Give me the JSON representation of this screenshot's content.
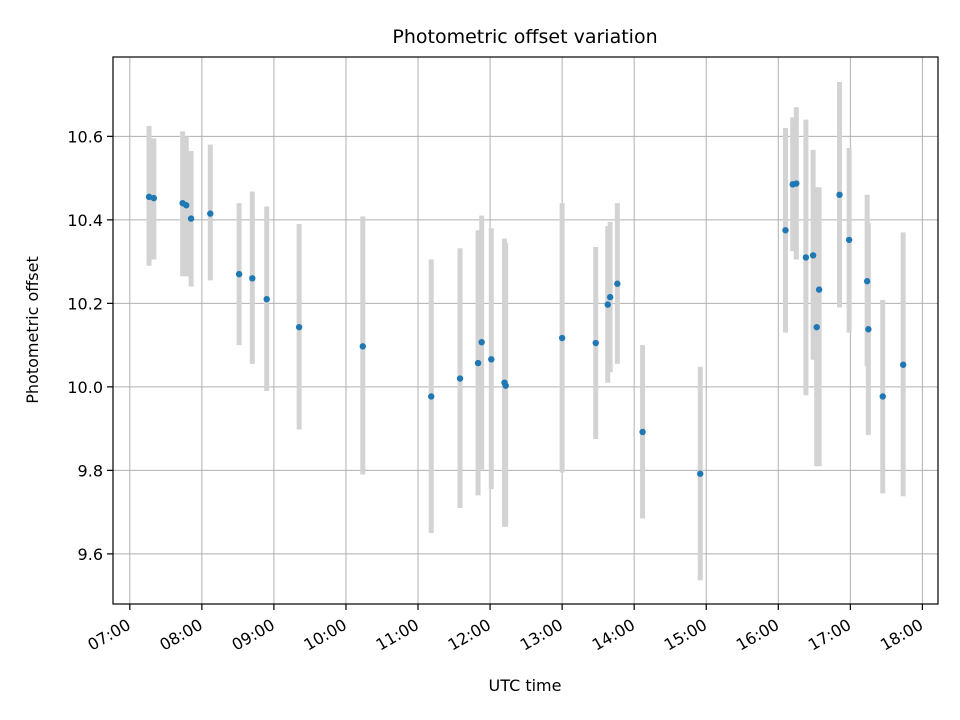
{
  "chart_data": {
    "type": "scatter",
    "title": "Photometric offset variation",
    "xlabel": "UTC time",
    "ylabel": "Photometric offset",
    "x_ticks": [
      "07:00",
      "08:00",
      "09:00",
      "10:00",
      "11:00",
      "12:00",
      "13:00",
      "14:00",
      "15:00",
      "16:00",
      "17:00",
      "18:00"
    ],
    "y_ticks": [
      "9.6",
      "9.8",
      "10.0",
      "10.2",
      "10.4",
      "10.6"
    ],
    "xlim": [
      "06:46",
      "18:13"
    ],
    "ylim": [
      9.48,
      10.79
    ],
    "grid": true,
    "series": [
      {
        "marker_color": "#1f77b4",
        "errorbar_color": "#d3d3d3",
        "points": [
          {
            "x": "07:16",
            "y": 10.455,
            "lo": 10.29,
            "hi": 10.625
          },
          {
            "x": "07:20",
            "y": 10.452,
            "lo": 10.305,
            "hi": 10.595
          },
          {
            "x": "07:44",
            "y": 10.44,
            "lo": 10.265,
            "hi": 10.612
          },
          {
            "x": "07:47",
            "y": 10.435,
            "lo": 10.265,
            "hi": 10.6
          },
          {
            "x": "07:51",
            "y": 10.403,
            "lo": 10.24,
            "hi": 10.565
          },
          {
            "x": "08:07",
            "y": 10.415,
            "lo": 10.255,
            "hi": 10.58
          },
          {
            "x": "08:31",
            "y": 10.27,
            "lo": 10.1,
            "hi": 10.44
          },
          {
            "x": "08:42",
            "y": 10.26,
            "lo": 10.055,
            "hi": 10.468
          },
          {
            "x": "08:54",
            "y": 10.21,
            "lo": 9.99,
            "hi": 10.432
          },
          {
            "x": "09:21",
            "y": 10.143,
            "lo": 9.898,
            "hi": 10.39
          },
          {
            "x": "10:14",
            "y": 10.097,
            "lo": 9.79,
            "hi": 10.408
          },
          {
            "x": "11:11",
            "y": 9.977,
            "lo": 9.65,
            "hi": 10.305
          },
          {
            "x": "11:35",
            "y": 10.02,
            "lo": 9.71,
            "hi": 10.332
          },
          {
            "x": "11:50",
            "y": 10.057,
            "lo": 9.74,
            "hi": 10.375
          },
          {
            "x": "11:53",
            "y": 10.107,
            "lo": 9.802,
            "hi": 10.41
          },
          {
            "x": "12:01",
            "y": 10.066,
            "lo": 9.755,
            "hi": 10.38
          },
          {
            "x": "12:12",
            "y": 10.01,
            "lo": 9.665,
            "hi": 10.355
          },
          {
            "x": "12:13",
            "y": 10.003,
            "lo": 9.665,
            "hi": 10.345
          },
          {
            "x": "13:00",
            "y": 10.117,
            "lo": 9.795,
            "hi": 10.44
          },
          {
            "x": "13:28",
            "y": 10.105,
            "lo": 9.875,
            "hi": 10.335
          },
          {
            "x": "13:38",
            "y": 10.197,
            "lo": 10.01,
            "hi": 10.385
          },
          {
            "x": "13:40",
            "y": 10.215,
            "lo": 10.035,
            "hi": 10.395
          },
          {
            "x": "13:46",
            "y": 10.247,
            "lo": 10.055,
            "hi": 10.44
          },
          {
            "x": "14:07",
            "y": 9.892,
            "lo": 9.685,
            "hi": 10.1
          },
          {
            "x": "14:55",
            "y": 9.792,
            "lo": 9.537,
            "hi": 10.048
          },
          {
            "x": "16:06",
            "y": 10.375,
            "lo": 10.13,
            "hi": 10.62
          },
          {
            "x": "16:12",
            "y": 10.485,
            "lo": 10.325,
            "hi": 10.645
          },
          {
            "x": "16:15",
            "y": 10.487,
            "lo": 10.305,
            "hi": 10.67
          },
          {
            "x": "16:23",
            "y": 10.31,
            "lo": 9.98,
            "hi": 10.64
          },
          {
            "x": "16:29",
            "y": 10.315,
            "lo": 10.065,
            "hi": 10.568
          },
          {
            "x": "16:32",
            "y": 10.143,
            "lo": 9.81,
            "hi": 10.478
          },
          {
            "x": "16:34",
            "y": 10.233,
            "lo": 9.81,
            "hi": 10.478
          },
          {
            "x": "16:51",
            "y": 10.46,
            "lo": 10.19,
            "hi": 10.73
          },
          {
            "x": "16:59",
            "y": 10.352,
            "lo": 10.13,
            "hi": 10.572
          },
          {
            "x": "17:14",
            "y": 10.253,
            "lo": 10.05,
            "hi": 10.46
          },
          {
            "x": "17:15",
            "y": 10.138,
            "lo": 9.885,
            "hi": 10.392
          },
          {
            "x": "17:27",
            "y": 9.977,
            "lo": 9.745,
            "hi": 10.208
          },
          {
            "x": "17:44",
            "y": 10.053,
            "lo": 9.738,
            "hi": 10.37
          }
        ]
      }
    ]
  }
}
